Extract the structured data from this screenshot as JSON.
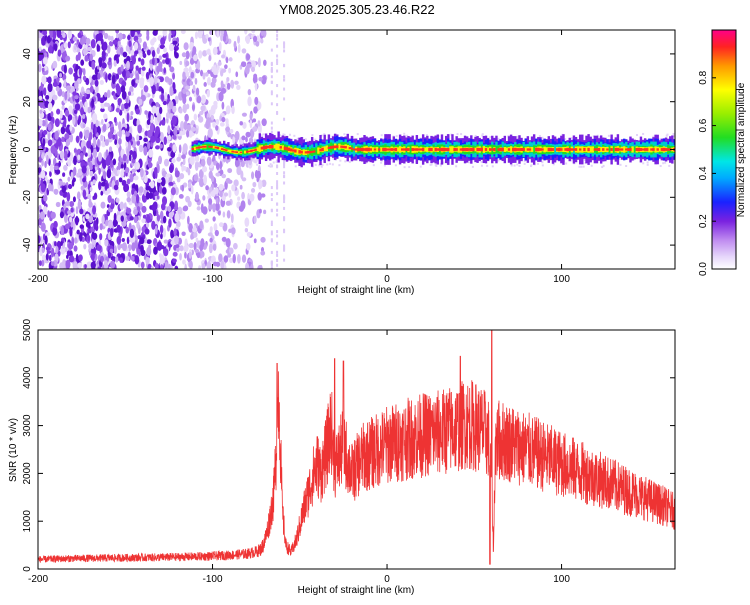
{
  "title": "YM08.2025.305.23.46.R22",
  "chart_data": [
    {
      "type": "heatmap",
      "xlabel": "Height of straight line (km)",
      "ylabel": "Frequency (Hz)",
      "xlim": [
        -200,
        165
      ],
      "ylim": [
        -50,
        50
      ],
      "xticks": [
        -200,
        -100,
        0,
        100
      ],
      "xtick_labels": [
        "-200",
        "-100",
        "0",
        "100"
      ],
      "yticks": [
        -40,
        -20,
        0,
        20,
        40
      ],
      "ytick_labels": [
        "-40",
        "-20",
        "0",
        "20",
        "40"
      ],
      "colorbar": {
        "label": "Normalized spectral amplitude",
        "range": [
          0,
          1
        ],
        "ticks": [
          0.0,
          0.2,
          0.4,
          0.6,
          0.8
        ],
        "tick_labels": [
          "0.0",
          "0.2",
          "0.4",
          "0.6",
          "0.8"
        ]
      },
      "features": {
        "noise_region_x": [
          -200,
          -80
        ],
        "signal_band_start_x": -112,
        "signal_band_end_x": 165,
        "signal_center_frequency_hz": 0
      }
    },
    {
      "type": "line",
      "xlabel": "Height of straight line (km)",
      "ylabel": "SNR (10 * v/v)",
      "xlim": [
        -200,
        165
      ],
      "ylim": [
        0,
        5000
      ],
      "xticks": [
        -200,
        -100,
        0,
        100
      ],
      "xtick_labels": [
        "-200",
        "-100",
        "0",
        "100"
      ],
      "yticks": [
        0,
        1000,
        2000,
        3000,
        4000,
        5000
      ],
      "ytick_labels": [
        "0",
        "1000",
        "2000",
        "3000",
        "4000",
        "5000"
      ],
      "series": [
        {
          "name": "SNR",
          "color": "#ee3333",
          "x": [
            -200,
            -180,
            -160,
            -140,
            -120,
            -100,
            -90,
            -80,
            -75,
            -72,
            -70,
            -68,
            -65,
            -63,
            -62,
            -61,
            -60,
            -58,
            -55,
            -52,
            -50,
            -48,
            -45,
            -42,
            -40,
            -38,
            -35,
            -32,
            -30,
            -28,
            -25,
            -22,
            -20,
            -18,
            -15,
            -10,
            -5,
            0,
            10,
            20,
            30,
            40,
            45,
            50,
            55,
            58,
            60,
            61,
            62,
            64,
            70,
            80,
            90,
            100,
            110,
            120,
            130,
            140,
            150,
            160,
            165
          ],
          "y": [
            200,
            220,
            230,
            240,
            250,
            270,
            290,
            320,
            360,
            420,
            600,
            900,
            1500,
            2800,
            3800,
            2500,
            1200,
            500,
            350,
            600,
            900,
            1200,
            1600,
            2000,
            2200,
            2000,
            2400,
            3000,
            2100,
            2300,
            2600,
            2200,
            2000,
            2100,
            2300,
            2400,
            2500,
            2600,
            2700,
            2800,
            2850,
            2950,
            3050,
            3000,
            2900,
            2750,
            1800,
            300,
            2600,
            2700,
            2650,
            2500,
            2350,
            2200,
            2050,
            1900,
            1750,
            1600,
            1450,
            1300,
            1200
          ]
        }
      ],
      "features": {
        "spikes": [
          {
            "x": -63,
            "y": 4300
          },
          {
            "x": -30,
            "y": 4400
          },
          {
            "x": -25,
            "y": 4350
          },
          {
            "x": 42,
            "y": 4450
          },
          {
            "x": 60,
            "y": 5000
          }
        ],
        "dips": [
          {
            "x": 59,
            "y": 100
          }
        ]
      }
    }
  ]
}
